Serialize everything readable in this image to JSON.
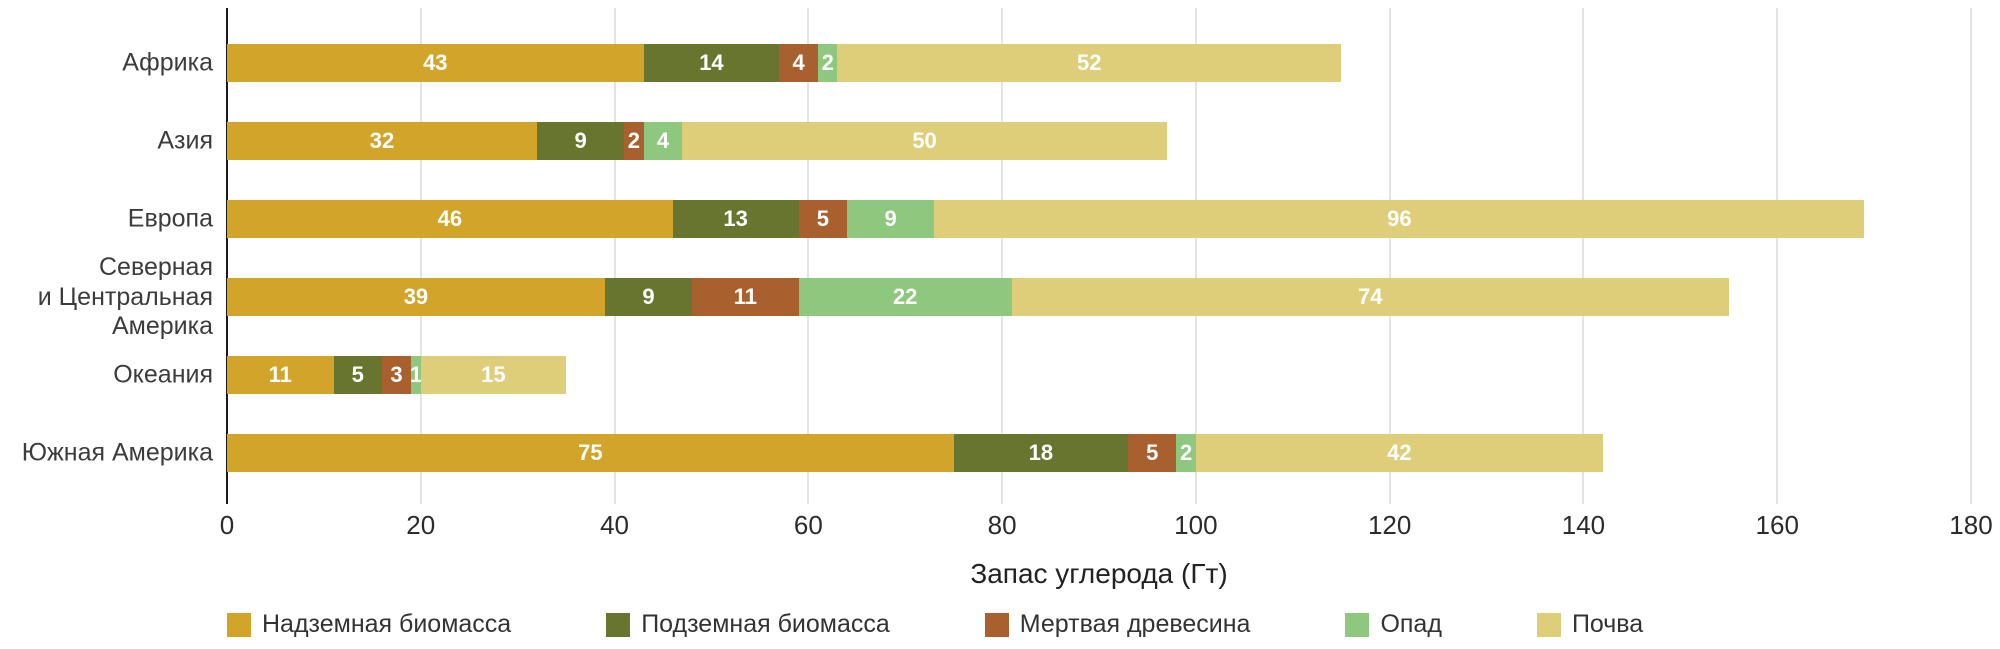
{
  "chart_data": {
    "type": "bar",
    "orientation": "horizontal",
    "stacked": true,
    "title": "",
    "xlabel": "Запас углерода (Гт)",
    "ylabel": "",
    "xlim": [
      0,
      180
    ],
    "xticks": [
      0,
      20,
      40,
      60,
      80,
      100,
      120,
      140,
      160,
      180
    ],
    "grid": true,
    "legend_position": "bottom",
    "value_label_color": "#FFFFFF",
    "gridline_color": "#C9C9C9",
    "axis_line_color": "#1A1A1A",
    "categories": [
      "Африка",
      "Азия",
      "Европа",
      "Северная\nи Центральная\nАмерика",
      "Океания",
      "Южная Америка"
    ],
    "series": [
      {
        "name": "Надземная биомасса",
        "color": "#D2A42A",
        "values": [
          43,
          32,
          46,
          39,
          11,
          75
        ]
      },
      {
        "name": "Подземная биомасса",
        "color": "#67752F",
        "values": [
          14,
          9,
          13,
          9,
          5,
          18
        ]
      },
      {
        "name": "Мертвая древесина",
        "color": "#A8612E",
        "values": [
          4,
          2,
          5,
          11,
          3,
          5
        ]
      },
      {
        "name": "Опад",
        "color": "#8DC87E",
        "values": [
          2,
          4,
          9,
          22,
          1,
          2
        ]
      },
      {
        "name": "Почва",
        "color": "#DECE79",
        "values": [
          52,
          50,
          96,
          74,
          15,
          42
        ]
      }
    ]
  }
}
